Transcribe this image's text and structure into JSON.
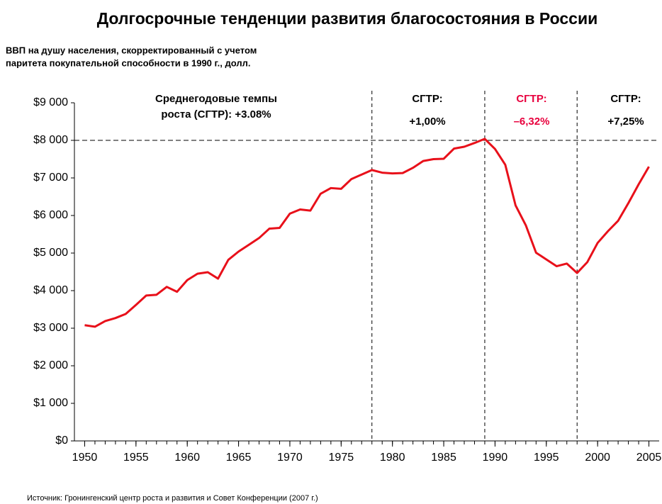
{
  "chart_data": {
    "type": "line",
    "title": "Долгосрочные тенденции развития благосостояния в России",
    "subtitle": [
      "ВВП на душу населения, скорректированный с учетом",
      "паритета покупательной способности в 1990 г., долл."
    ],
    "source": "Источник: Гронингенский центр роста и развития и Совет Конференции (2007 г.)",
    "x": [
      1950,
      1951,
      1952,
      1953,
      1954,
      1955,
      1956,
      1957,
      1958,
      1959,
      1960,
      1961,
      1962,
      1963,
      1964,
      1965,
      1966,
      1967,
      1968,
      1969,
      1970,
      1971,
      1972,
      1973,
      1974,
      1975,
      1976,
      1977,
      1978,
      1979,
      1980,
      1981,
      1982,
      1983,
      1984,
      1985,
      1986,
      1987,
      1988,
      1989,
      1990,
      1991,
      1992,
      1993,
      1994,
      1995,
      1996,
      1997,
      1998,
      1999,
      2000,
      2001,
      2002,
      2003,
      2004,
      2005
    ],
    "series": [
      {
        "color": "#e8101a",
        "values": [
          3080,
          3040,
          3190,
          3270,
          3380,
          3620,
          3870,
          3890,
          4100,
          3970,
          4280,
          4450,
          4490,
          4320,
          4820,
          5040,
          5220,
          5400,
          5650,
          5670,
          6050,
          6160,
          6130,
          6580,
          6730,
          6710,
          6970,
          7090,
          7210,
          7140,
          7120,
          7130,
          7270,
          7450,
          7500,
          7510,
          7780,
          7830,
          7930,
          8040,
          7770,
          7350,
          6270,
          5740,
          5010,
          4830,
          4650,
          4720,
          4470,
          4760,
          5270,
          5580,
          5860,
          6330,
          6830,
          7300
        ]
      }
    ],
    "xlim": [
      1949,
      2006
    ],
    "xticks": [
      1950,
      1955,
      1960,
      1965,
      1970,
      1975,
      1980,
      1985,
      1990,
      1995,
      2000,
      2005
    ],
    "ylim": [
      0,
      9000
    ],
    "yticks": [
      {
        "value": 0,
        "label": "$0"
      },
      {
        "value": 1000,
        "label": "$1 000"
      },
      {
        "value": 2000,
        "label": "$2 000"
      },
      {
        "value": 3000,
        "label": "$3 000"
      },
      {
        "value": 4000,
        "label": "$4 000"
      },
      {
        "value": 5000,
        "label": "$5 000"
      },
      {
        "value": 6000,
        "label": "$6 000"
      },
      {
        "value": 7000,
        "label": "$7 000"
      },
      {
        "value": 8000,
        "label": "$8 000"
      },
      {
        "value": 9000,
        "label": "$9 000"
      }
    ],
    "reference_lines": {
      "x": [
        1978,
        1989,
        1998
      ],
      "y": [
        8000
      ]
    },
    "annotations": [
      {
        "lines": [
          "Среднегодовые темпы",
          "роста (СГТР): +3.08%"
        ],
        "color": "#000000"
      },
      {
        "lines": [
          "СГТР:",
          "+1,00%"
        ],
        "color": "#000000"
      },
      {
        "lines": [
          "СГТР:",
          "–6,32%"
        ],
        "color": "#e8003d"
      },
      {
        "lines": [
          "СГТР:",
          "+7,25%"
        ],
        "color": "#000000"
      }
    ]
  }
}
